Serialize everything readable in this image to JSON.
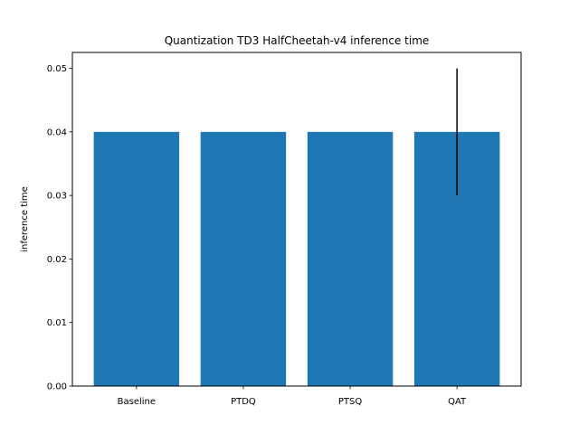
{
  "chart_data": {
    "type": "bar",
    "title": "Quantization TD3 HalfCheetah-v4 inference time",
    "xlabel": "",
    "ylabel": "inference time",
    "categories": [
      "Baseline",
      "PTDQ",
      "PTSQ",
      "QAT"
    ],
    "values": [
      0.04,
      0.04,
      0.04,
      0.04
    ],
    "error": [
      0,
      0,
      0,
      0.01
    ],
    "ylim": [
      0,
      0.0525
    ],
    "yticks": [
      0.0,
      0.01,
      0.02,
      0.03,
      0.04,
      0.05
    ],
    "ytick_labels": [
      "0.00",
      "0.01",
      "0.02",
      "0.03",
      "0.04",
      "0.05"
    ],
    "grid": false,
    "colors": {
      "bar": "#1f77b4",
      "error": "#000000",
      "axis": "#000000"
    }
  }
}
